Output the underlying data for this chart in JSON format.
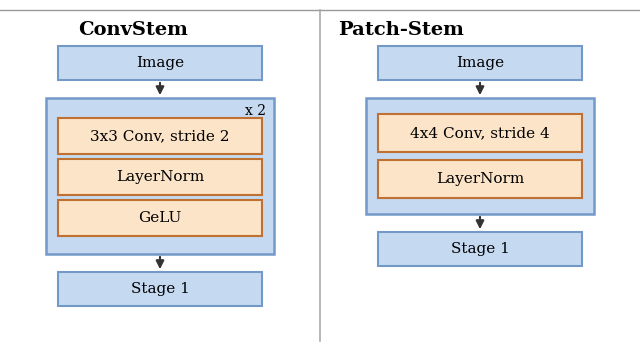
{
  "title_left": "ConvStem",
  "title_right": "Patch-Stem",
  "bg_color": "#ffffff",
  "box_light_blue_face": "#c5d9f1",
  "box_light_blue_edge": "#7399c6",
  "box_orange_face": "#fce4c8",
  "box_orange_edge": "#c07030",
  "divider_color": "#aaaaaa",
  "arrow_color": "#333333",
  "repeat_label": "x 2",
  "left_image_label": "Image",
  "right_image_label": "Image",
  "left_stage_label": "Stage 1",
  "right_stage_label": "Stage 1",
  "left_inner_labels": [
    "3x3 Conv, stride 2",
    "LayerNorm",
    "GeLU"
  ],
  "right_inner_labels": [
    "4x4 Conv, stride 4",
    "LayerNorm"
  ],
  "font_size_title": 14,
  "font_size_box": 11,
  "font_size_repeat": 10
}
